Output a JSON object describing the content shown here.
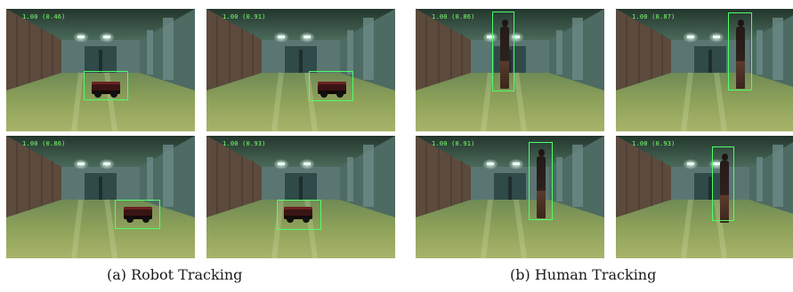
{
  "panels": [
    {
      "caption": "(a) Robot Tracking",
      "frames": [
        {
          "overlay": "1.00 (0.46)"
        },
        {
          "overlay": "1.00 (0.91)"
        },
        {
          "overlay": "1.00 (0.86)"
        },
        {
          "overlay": "1.00 (0.93)"
        }
      ]
    },
    {
      "caption": "(b) Human Tracking",
      "frames": [
        {
          "overlay": "1.00 (0.86)"
        },
        {
          "overlay": "1.00 (0.87)"
        },
        {
          "overlay": "1.00 (0.91)"
        },
        {
          "overlay": "1.00 (0.93)"
        }
      ]
    }
  ],
  "colors": {
    "bounding_box": "#4dff6a",
    "overlay_text": "#7cff6e",
    "floor": "#8fa25a",
    "wall": "#5c4a3c",
    "ceiling_light": "#e9fff4"
  }
}
